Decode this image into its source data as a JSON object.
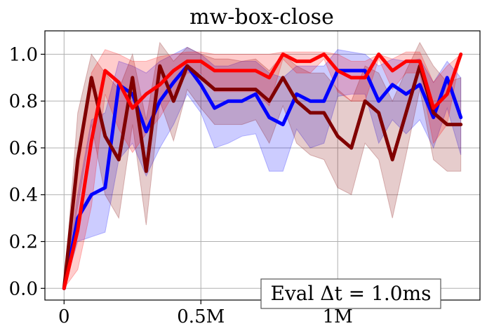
{
  "chart_data": {
    "type": "line",
    "title": "mw-box-close",
    "xlabel": "",
    "ylabel": "",
    "xlim": [
      -70000,
      1520000
    ],
    "ylim": [
      -0.05,
      1.1
    ],
    "xticks": [
      {
        "value": 0,
        "label": "0"
      },
      {
        "value": 500000,
        "label": "0.5M"
      },
      {
        "value": 1000000,
        "label": "1M"
      }
    ],
    "yticks": [
      {
        "value": 0.0,
        "label": "0.0"
      },
      {
        "value": 0.2,
        "label": "0.2"
      },
      {
        "value": 0.4,
        "label": "0.4"
      },
      {
        "value": 0.6,
        "label": "0.6"
      },
      {
        "value": 0.8,
        "label": "0.8"
      },
      {
        "value": 1.0,
        "label": "1.0"
      }
    ],
    "grid": true,
    "annotation": "Eval Δt = 1.0ms",
    "x": [
      0,
      50000,
      100000,
      150000,
      200000,
      250000,
      300000,
      350000,
      400000,
      450000,
      500000,
      550000,
      600000,
      650000,
      700000,
      750000,
      800000,
      850000,
      900000,
      950000,
      1000000,
      1050000,
      1100000,
      1150000,
      1200000,
      1250000,
      1300000,
      1350000,
      1400000,
      1450000
    ],
    "series": [
      {
        "color": "#0000ff",
        "band_color": "#0000ff",
        "values": [
          0.0,
          0.3,
          0.4,
          0.43,
          0.87,
          0.83,
          0.67,
          0.8,
          0.88,
          0.95,
          0.87,
          0.77,
          0.8,
          0.8,
          0.83,
          0.73,
          0.7,
          0.83,
          0.8,
          0.8,
          0.93,
          0.93,
          0.93,
          0.8,
          0.87,
          0.83,
          0.87,
          0.73,
          0.9,
          0.73
        ],
        "upper": [
          0.0,
          0.4,
          0.72,
          0.75,
          0.97,
          0.95,
          0.92,
          0.97,
          1.0,
          1.03,
          1.0,
          0.95,
          0.95,
          0.97,
          0.97,
          0.92,
          0.9,
          0.95,
          0.95,
          0.95,
          1.02,
          1.01,
          1.0,
          0.95,
          0.98,
          0.97,
          0.98,
          0.88,
          0.97,
          0.9
        ],
        "lower": [
          0.0,
          0.2,
          0.22,
          0.24,
          0.55,
          0.62,
          0.48,
          0.6,
          0.7,
          0.83,
          0.75,
          0.6,
          0.62,
          0.65,
          0.66,
          0.5,
          0.5,
          0.68,
          0.6,
          0.62,
          0.82,
          0.83,
          0.83,
          0.62,
          0.72,
          0.66,
          0.72,
          0.6,
          0.77,
          0.57
        ]
      },
      {
        "color": "#800000",
        "band_color": "#800000",
        "values": [
          0.0,
          0.55,
          0.9,
          0.65,
          0.55,
          0.9,
          0.5,
          0.95,
          0.8,
          0.95,
          0.9,
          0.85,
          0.85,
          0.85,
          0.85,
          0.8,
          0.9,
          0.8,
          0.75,
          0.75,
          0.65,
          0.6,
          0.8,
          0.75,
          0.55,
          0.75,
          0.95,
          0.75,
          0.7,
          0.7
        ],
        "upper": [
          0.0,
          0.75,
          1.0,
          0.92,
          0.85,
          1.0,
          0.72,
          1.05,
          0.97,
          1.03,
          1.0,
          0.98,
          0.98,
          0.97,
          0.98,
          0.93,
          1.0,
          0.95,
          0.92,
          0.92,
          0.85,
          0.8,
          0.95,
          0.92,
          0.8,
          0.93,
          1.05,
          0.95,
          0.88,
          0.9
        ],
        "lower": [
          0.0,
          0.35,
          0.7,
          0.4,
          0.3,
          0.7,
          0.27,
          0.8,
          0.63,
          0.85,
          0.77,
          0.7,
          0.7,
          0.7,
          0.72,
          0.62,
          0.78,
          0.62,
          0.57,
          0.55,
          0.43,
          0.4,
          0.62,
          0.55,
          0.3,
          0.57,
          0.85,
          0.55,
          0.5,
          0.5
        ]
      },
      {
        "color": "#ff0000",
        "band_color": "#ff0000",
        "values": [
          0.0,
          0.25,
          0.63,
          0.93,
          0.88,
          0.77,
          0.83,
          0.87,
          0.93,
          0.97,
          0.97,
          0.93,
          0.93,
          0.93,
          0.93,
          0.9,
          1.0,
          0.97,
          0.97,
          1.0,
          0.93,
          0.9,
          0.9,
          1.0,
          0.93,
          0.97,
          0.97,
          0.77,
          0.83,
          1.0
        ],
        "upper": [
          0.0,
          0.48,
          0.92,
          1.02,
          1.0,
          0.97,
          0.97,
          0.99,
          1.0,
          1.01,
          1.01,
          1.0,
          1.0,
          1.0,
          1.0,
          1.0,
          1.01,
          1.01,
          1.01,
          1.01,
          1.0,
          0.97,
          0.97,
          1.0,
          0.98,
          1.01,
          1.01,
          0.88,
          0.95,
          1.0
        ],
        "lower": [
          0.0,
          0.08,
          0.35,
          0.83,
          0.68,
          0.58,
          0.66,
          0.73,
          0.83,
          0.92,
          0.92,
          0.84,
          0.84,
          0.84,
          0.84,
          0.78,
          0.98,
          0.92,
          0.92,
          0.98,
          0.84,
          0.8,
          0.8,
          0.98,
          0.85,
          0.92,
          0.92,
          0.62,
          0.7,
          1.0
        ]
      }
    ]
  }
}
